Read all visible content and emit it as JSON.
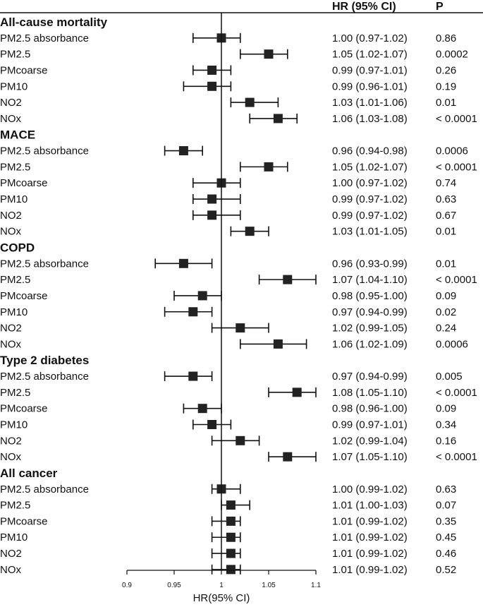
{
  "chart_data": {
    "type": "forest",
    "xlabel": "HR(95% CI)",
    "xlim": [
      0.9,
      1.1
    ],
    "xticks": [
      "0.9",
      "0.95",
      "1",
      "1.05",
      "1.1"
    ],
    "xtick_values": [
      0.9,
      0.95,
      1.0,
      1.05,
      1.1
    ],
    "reference_line": 1.0,
    "header": {
      "hr": "HR (95% CI)",
      "p": "P"
    },
    "groups": [
      {
        "name": "All-cause mortality",
        "rows": [
          {
            "label": "PM2.5 absorbance",
            "hr": 1.0,
            "lo": 0.97,
            "hi": 1.02,
            "hr_text": "1.00 (0.97-1.02)",
            "p": "0.86"
          },
          {
            "label": "PM2.5",
            "hr": 1.05,
            "lo": 1.02,
            "hi": 1.07,
            "hr_text": "1.05 (1.02-1.07)",
            "p": "0.0002"
          },
          {
            "label": "PMcoarse",
            "hr": 0.99,
            "lo": 0.97,
            "hi": 1.01,
            "hr_text": "0.99 (0.97-1.01)",
            "p": "0.26"
          },
          {
            "label": "PM10",
            "hr": 0.99,
            "lo": 0.96,
            "hi": 1.01,
            "hr_text": "0.99 (0.96-1.01)",
            "p": "0.19"
          },
          {
            "label": "NO2",
            "hr": 1.03,
            "lo": 1.01,
            "hi": 1.06,
            "hr_text": "1.03 (1.01-1.06)",
            "p": "0.01"
          },
          {
            "label": "NOx",
            "hr": 1.06,
            "lo": 1.03,
            "hi": 1.08,
            "hr_text": "1.06 (1.03-1.08)",
            "p": "< 0.0001"
          }
        ]
      },
      {
        "name": "MACE",
        "rows": [
          {
            "label": "PM2.5 absorbance",
            "hr": 0.96,
            "lo": 0.94,
            "hi": 0.98,
            "hr_text": "0.96 (0.94-0.98)",
            "p": "0.0006"
          },
          {
            "label": "PM2.5",
            "hr": 1.05,
            "lo": 1.02,
            "hi": 1.07,
            "hr_text": "1.05 (1.02-1.07)",
            "p": "< 0.0001"
          },
          {
            "label": "PMcoarse",
            "hr": 1.0,
            "lo": 0.97,
            "hi": 1.02,
            "hr_text": "1.00 (0.97-1.02)",
            "p": "0.74"
          },
          {
            "label": "PM10",
            "hr": 0.99,
            "lo": 0.97,
            "hi": 1.02,
            "hr_text": "0.99 (0.97-1.02)",
            "p": "0.63"
          },
          {
            "label": "NO2",
            "hr": 0.99,
            "lo": 0.97,
            "hi": 1.02,
            "hr_text": "0.99 (0.97-1.02)",
            "p": "0.67"
          },
          {
            "label": "NOx",
            "hr": 1.03,
            "lo": 1.01,
            "hi": 1.05,
            "hr_text": "1.03 (1.01-1.05)",
            "p": "0.01"
          }
        ]
      },
      {
        "name": "COPD",
        "rows": [
          {
            "label": "PM2.5 absorbance",
            "hr": 0.96,
            "lo": 0.93,
            "hi": 0.99,
            "hr_text": "0.96 (0.93-0.99)",
            "p": "0.01"
          },
          {
            "label": "PM2.5",
            "hr": 1.07,
            "lo": 1.04,
            "hi": 1.1,
            "hr_text": "1.07 (1.04-1.10)",
            "p": "< 0.0001"
          },
          {
            "label": "PMcoarse",
            "hr": 0.98,
            "lo": 0.95,
            "hi": 1.0,
            "hr_text": "0.98 (0.95-1.00)",
            "p": "0.09"
          },
          {
            "label": "PM10",
            "hr": 0.97,
            "lo": 0.94,
            "hi": 0.99,
            "hr_text": "0.97 (0.94-0.99)",
            "p": "0.02"
          },
          {
            "label": "NO2",
            "hr": 1.02,
            "lo": 0.99,
            "hi": 1.05,
            "hr_text": "1.02 (0.99-1.05)",
            "p": "0.24"
          },
          {
            "label": "NOx",
            "hr": 1.06,
            "lo": 1.02,
            "hi": 1.09,
            "hr_text": "1.06 (1.02-1.09)",
            "p": "0.0006"
          }
        ]
      },
      {
        "name": "Type 2 diabetes",
        "rows": [
          {
            "label": "PM2.5 absorbance",
            "hr": 0.97,
            "lo": 0.94,
            "hi": 0.99,
            "hr_text": "0.97 (0.94-0.99)",
            "p": "0.005"
          },
          {
            "label": "PM2.5",
            "hr": 1.08,
            "lo": 1.05,
            "hi": 1.1,
            "hr_text": "1.08 (1.05-1.10)",
            "p": "< 0.0001"
          },
          {
            "label": "PMcoarse",
            "hr": 0.98,
            "lo": 0.96,
            "hi": 1.0,
            "hr_text": "0.98 (0.96-1.00)",
            "p": "0.09"
          },
          {
            "label": "PM10",
            "hr": 0.99,
            "lo": 0.97,
            "hi": 1.01,
            "hr_text": "0.99 (0.97-1.01)",
            "p": "0.34"
          },
          {
            "label": "NO2",
            "hr": 1.02,
            "lo": 0.99,
            "hi": 1.04,
            "hr_text": "1.02 (0.99-1.04)",
            "p": "0.16"
          },
          {
            "label": "NOx",
            "hr": 1.07,
            "lo": 1.05,
            "hi": 1.1,
            "hr_text": "1.07 (1.05-1.10)",
            "p": "< 0.0001"
          }
        ]
      },
      {
        "name": "All cancer",
        "rows": [
          {
            "label": "PM2.5 absorbance",
            "hr": 1.0,
            "lo": 0.99,
            "hi": 1.02,
            "hr_text": "1.00 (0.99-1.02)",
            "p": "0.63"
          },
          {
            "label": "PM2.5",
            "hr": 1.01,
            "lo": 1.0,
            "hi": 1.03,
            "hr_text": "1.01 (1.00-1.03)",
            "p": "0.07"
          },
          {
            "label": "PMcoarse",
            "hr": 1.01,
            "lo": 0.99,
            "hi": 1.02,
            "hr_text": "1.01 (0.99-1.02)",
            "p": "0.35"
          },
          {
            "label": "PM10",
            "hr": 1.01,
            "lo": 0.99,
            "hi": 1.02,
            "hr_text": "1.01 (0.99-1.02)",
            "p": "0.45"
          },
          {
            "label": "NO2",
            "hr": 1.01,
            "lo": 0.99,
            "hi": 1.02,
            "hr_text": "1.01 (0.99-1.02)",
            "p": "0.46"
          },
          {
            "label": "NOx",
            "hr": 1.01,
            "lo": 0.99,
            "hi": 1.02,
            "hr_text": "1.01 (0.99-1.02)",
            "p": "0.52"
          }
        ]
      }
    ]
  }
}
